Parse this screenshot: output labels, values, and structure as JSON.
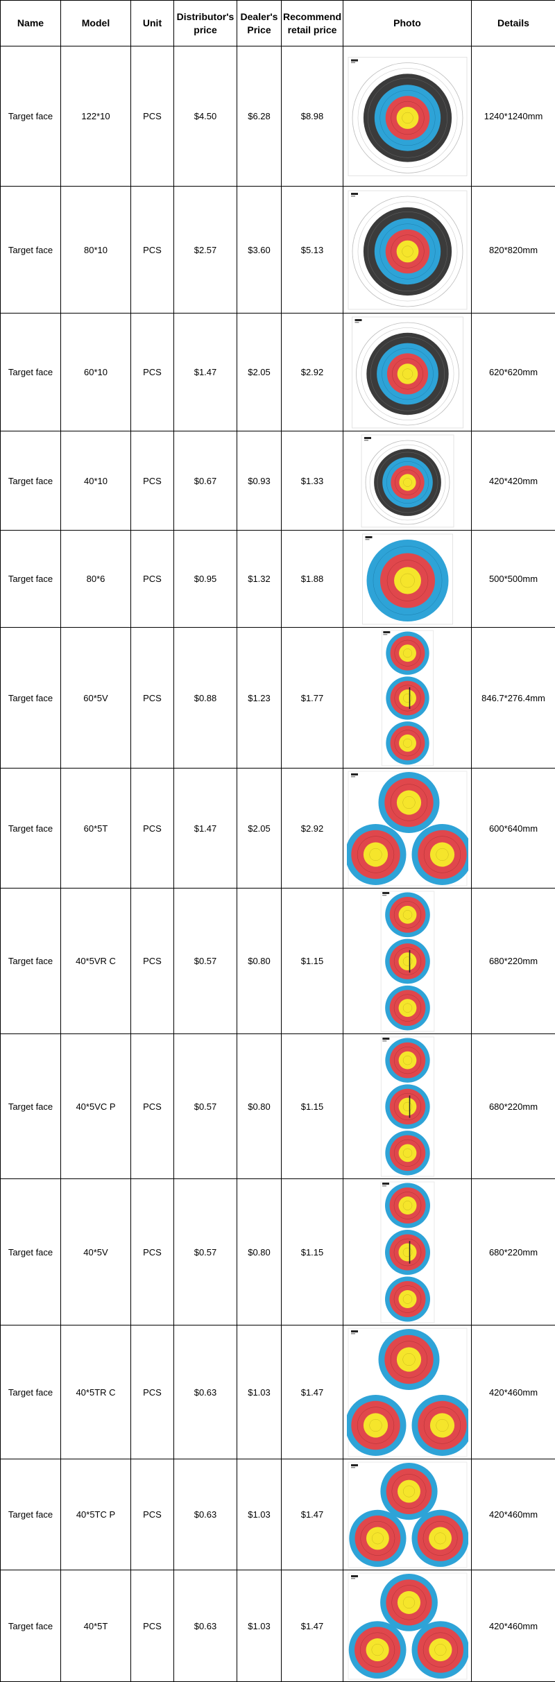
{
  "columns": {
    "name": "Name",
    "model": "Model",
    "unit": "Unit",
    "distributor_price": "Distributor's price",
    "dealer_price": "Dealer's Price",
    "retail_price": "Recommend retail price",
    "photo": "Photo",
    "details": "Details"
  },
  "colors": {
    "gold": "#f5e52b",
    "red": "#e0474c",
    "blue": "#2ea3d7",
    "black": "#3b3b3b",
    "white_ring": "#ffffff"
  },
  "rows": [
    {
      "name": "Target face",
      "model": "122*10",
      "unit": "PCS",
      "distributor_price": "$4.50",
      "dealer_price": "$6.28",
      "retail_price": "$8.98",
      "details": "1240*1240mm",
      "photo_type": "full-10-ring"
    },
    {
      "name": "Target face",
      "model": "80*10",
      "unit": "PCS",
      "distributor_price": "$2.57",
      "dealer_price": "$3.60",
      "retail_price": "$5.13",
      "details": "820*820mm",
      "photo_type": "full-10-ring"
    },
    {
      "name": "Target face",
      "model": "60*10",
      "unit": "PCS",
      "distributor_price": "$1.47",
      "dealer_price": "$2.05",
      "retail_price": "$2.92",
      "details": "620*620mm",
      "photo_type": "full-10-ring"
    },
    {
      "name": "Target face",
      "model": "40*10",
      "unit": "PCS",
      "distributor_price": "$0.67",
      "dealer_price": "$0.93",
      "retail_price": "$1.33",
      "details": "420*420mm",
      "photo_type": "full-10-ring"
    },
    {
      "name": "Target face",
      "model": "80*6",
      "unit": "PCS",
      "distributor_price": "$0.95",
      "dealer_price": "$1.32",
      "retail_price": "$1.88",
      "details": "500*500mm",
      "photo_type": "6-ring"
    },
    {
      "name": "Target face",
      "model": "60*5V",
      "unit": "PCS",
      "distributor_price": "$0.88",
      "dealer_price": "$1.23",
      "retail_price": "$1.77",
      "details": "846.7*276.4mm",
      "photo_type": "vertical-triple"
    },
    {
      "name": "Target face",
      "model": "60*5T",
      "unit": "PCS",
      "distributor_price": "$1.47",
      "dealer_price": "$2.05",
      "retail_price": "$2.92",
      "details": "600*640mm",
      "photo_type": "triangle-triple"
    },
    {
      "name": "Target face",
      "model": "40*5VR C",
      "unit": "PCS",
      "distributor_price": "$0.57",
      "dealer_price": "$0.80",
      "retail_price": "$1.15",
      "details": "680*220mm",
      "photo_type": "vertical-triple"
    },
    {
      "name": "Target face",
      "model": "40*5VC P",
      "unit": "PCS",
      "distributor_price": "$0.57",
      "dealer_price": "$0.80",
      "retail_price": "$1.15",
      "details": "680*220mm",
      "photo_type": "vertical-triple"
    },
    {
      "name": "Target face",
      "model": "40*5V",
      "unit": "PCS",
      "distributor_price": "$0.57",
      "dealer_price": "$0.80",
      "retail_price": "$1.15",
      "details": "680*220mm",
      "photo_type": "vertical-triple"
    },
    {
      "name": "Target face",
      "model": "40*5TR C",
      "unit": "PCS",
      "distributor_price": "$0.63",
      "dealer_price": "$1.03",
      "retail_price": "$1.47",
      "details": "420*460mm",
      "photo_type": "triangle-triple"
    },
    {
      "name": "Target face",
      "model": "40*5TC P",
      "unit": "PCS",
      "distributor_price": "$0.63",
      "dealer_price": "$1.03",
      "retail_price": "$1.47",
      "details": "420*460mm",
      "photo_type": "triangle-triple"
    },
    {
      "name": "Target face",
      "model": "40*5T",
      "unit": "PCS",
      "distributor_price": "$0.63",
      "dealer_price": "$1.03",
      "retail_price": "$1.47",
      "details": "420*460mm",
      "photo_type": "triangle-triple"
    }
  ]
}
